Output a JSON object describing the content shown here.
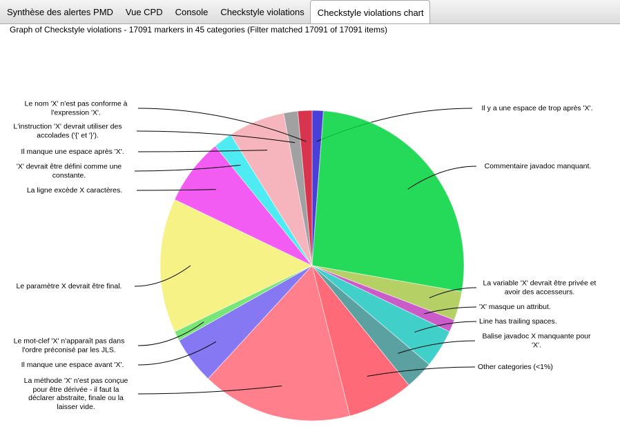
{
  "tabs": [
    "Synthèse des alertes PMD",
    "Vue CPD",
    "Console",
    "Checkstyle violations",
    "Checkstyle violations chart"
  ],
  "chart_data": {
    "type": "pie",
    "title": "Graph of Checkstyle violations - 17091 markers in 45 categories (Filter matched 17091 of 17091 items)",
    "categories": [
      "Il y a une espace de trop après  'X'.",
      "Commentaire javadoc manquant.",
      "La variable 'X' devrait être privée et avoir des accesseurs.",
      "'X' masque un attribut.",
      "Line has trailing spaces.",
      "Balise javadoc X manquante pour 'X'.",
      "Other categories (<1%)",
      "La méthode 'X' n'est pas conçue pour être dérivée - il faut la déclarer abstraite, finale ou la laisser vide.",
      "Il manque une espace avant 'X'.",
      "Le mot-clef 'X' n'apparaît pas dans l'ordre préconisé par les JLS.",
      "Le paramètre X devrait être final.",
      "La ligne excède X caractères.",
      "'X' devrait être défini comme une constante.",
      "Il manque une espace après 'X'.",
      "L'instruction 'X' devrait utiliser des accolades  ('{' et '}').",
      "Le nom 'X' n'est pas conforme à l'expression 'X'."
    ],
    "values": [
      1.2,
      26.5,
      3,
      1.3,
      4,
      3,
      7,
      16,
      5,
      1,
      14,
      7,
      2,
      6,
      1.5,
      1.5
    ],
    "colors": [
      "#2a1fd0",
      "#00d43c",
      "#a8c84a",
      "#c040c0",
      "#20c8c0",
      "#409090",
      "#ff5060",
      "#ff6a78",
      "#7060f0",
      "#60e060",
      "#f4f070",
      "#f040f0",
      "#30e8f0",
      "#f4a8b0",
      "#909090",
      "#d01030"
    ]
  }
}
